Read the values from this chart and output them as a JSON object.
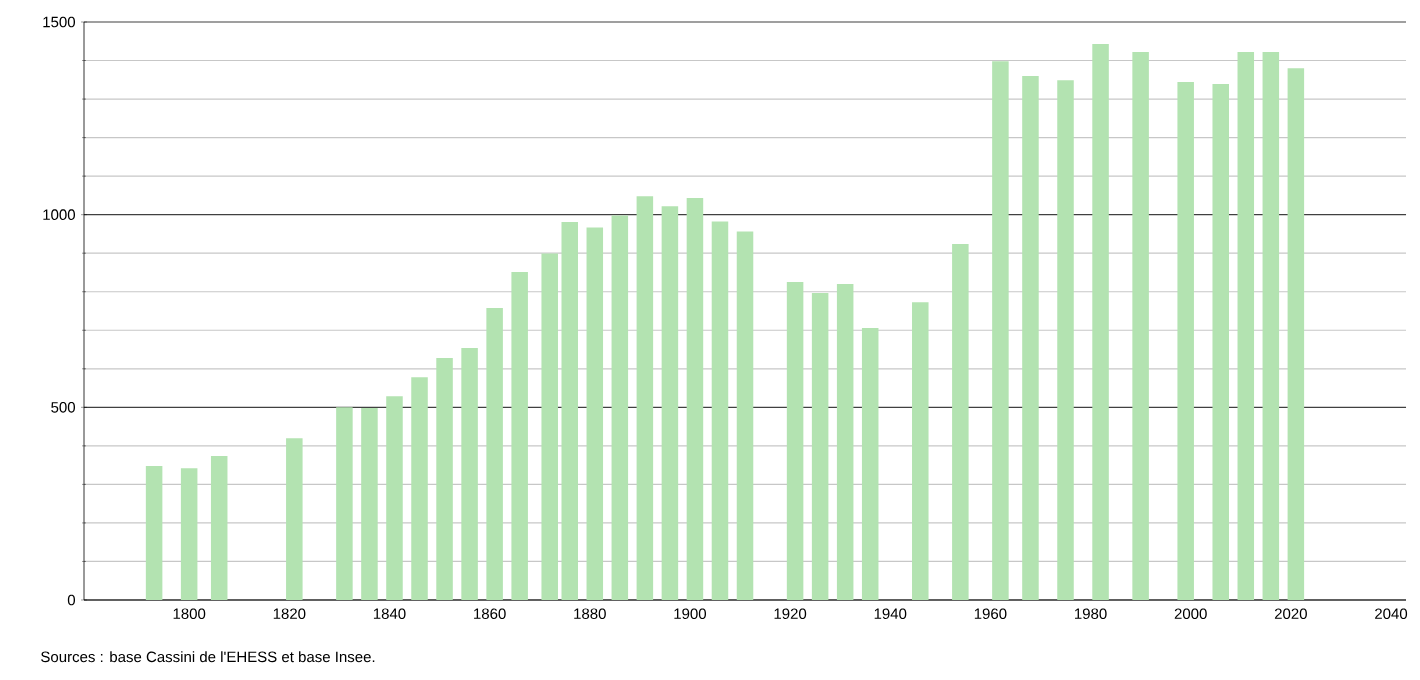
{
  "chart_data": {
    "type": "bar",
    "color": "#b3e3b1",
    "x": [
      1793,
      1800,
      1806,
      1821,
      1831,
      1836,
      1841,
      1846,
      1851,
      1856,
      1861,
      1866,
      1872,
      1876,
      1881,
      1886,
      1891,
      1896,
      1901,
      1906,
      1911,
      1921,
      1926,
      1931,
      1936,
      1946,
      1954,
      1962,
      1968,
      1975,
      1982,
      1990,
      1999,
      2006,
      2011,
      2016,
      2021
    ],
    "values": [
      348,
      342,
      374,
      420,
      500,
      498,
      529,
      578,
      628,
      654,
      758,
      851,
      899,
      981,
      967,
      998,
      1048,
      1022,
      1043,
      982,
      956,
      825,
      797,
      820,
      706,
      773,
      924,
      1398,
      1360,
      1349,
      1443,
      1422,
      1344,
      1339,
      1422,
      1422,
      1380
    ],
    "xlim": [
      1779,
      2043
    ],
    "ylim": [
      0,
      1500
    ],
    "xticks": [
      1800,
      1820,
      1840,
      1860,
      1880,
      1900,
      1920,
      1940,
      1960,
      1980,
      2000,
      2020,
      2040
    ],
    "yticks": [
      0,
      {
        "value": 100,
        "label": null
      },
      {
        "value": 200,
        "label": null
      },
      {
        "value": 300,
        "label": null
      },
      {
        "value": 400,
        "label": null
      },
      500,
      {
        "value": 600,
        "label": null
      },
      {
        "value": 700,
        "label": null
      },
      {
        "value": 800,
        "label": null
      },
      {
        "value": 900,
        "label": null
      },
      1000,
      {
        "value": 1100,
        "label": null
      },
      {
        "value": 1200,
        "label": null
      },
      {
        "value": 1300,
        "label": null
      },
      {
        "value": 1400,
        "label": null
      },
      1500
    ],
    "grid": "y",
    "annotations": [
      "Sources : base Cassini de l'EHESS et base Insee."
    ]
  }
}
